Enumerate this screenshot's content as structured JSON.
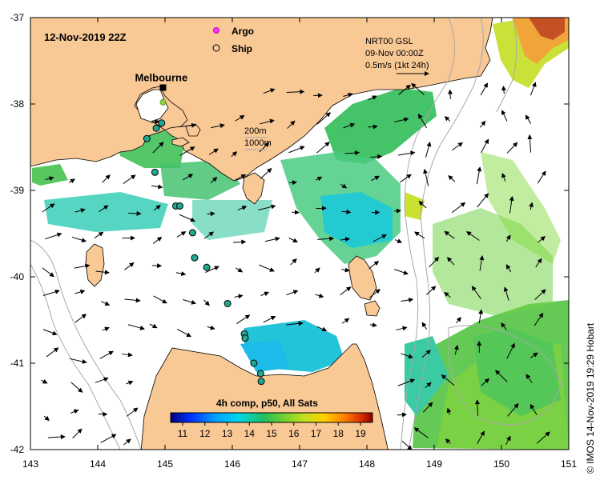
{
  "title": {
    "datetime": "12-Nov-2019 22Z",
    "legend_argo": "Argo",
    "legend_ship": "Ship"
  },
  "city": {
    "name": "Melbourne",
    "lon": 144.97,
    "lat": -37.81
  },
  "current_info": {
    "line1": "NRT00 GSL",
    "line2": "09-Nov 00:00Z",
    "line3": "0.5m/s (1kt 24h)"
  },
  "contours": {
    "label_200": "200m",
    "label_1000": "1000m"
  },
  "colorbar": {
    "title": "4h comp, p50, All Sats",
    "ticks": [
      "11",
      "12",
      "13",
      "14",
      "15",
      "16",
      "17",
      "18",
      "19"
    ]
  },
  "credit": "© IMOS 14-Nov-2019 19:29 Hobart",
  "axes": {
    "x_ticks": [
      "143",
      "144",
      "145",
      "146",
      "147",
      "148",
      "149",
      "150",
      "151"
    ],
    "y_ticks": [
      "-37",
      "-38",
      "-39",
      "-40",
      "-41",
      "-42"
    ],
    "x_range": [
      143,
      151
    ],
    "y_range": [
      -42,
      -37
    ]
  },
  "ships": [
    {
      "lon": 144.73,
      "lat": -38.4
    },
    {
      "lon": 144.87,
      "lat": -38.28
    },
    {
      "lon": 144.95,
      "lat": -38.22
    },
    {
      "lon": 144.85,
      "lat": -38.79
    },
    {
      "lon": 145.16,
      "lat": -39.18
    },
    {
      "lon": 145.22,
      "lat": -39.18
    },
    {
      "lon": 145.41,
      "lat": -39.49
    },
    {
      "lon": 145.44,
      "lat": -39.78
    },
    {
      "lon": 145.62,
      "lat": -39.89
    },
    {
      "lon": 145.93,
      "lat": -40.31
    },
    {
      "lon": 146.18,
      "lat": -40.66
    },
    {
      "lon": 146.19,
      "lat": -40.71
    },
    {
      "lon": 146.32,
      "lat": -41.0
    },
    {
      "lon": 146.42,
      "lat": -41.12
    },
    {
      "lon": 146.43,
      "lat": -41.21
    }
  ],
  "argo": [
    {
      "lon": 144.97,
      "lat": -37.98
    }
  ],
  "colors": {
    "land": "#f8c895",
    "ocean": "#ffffff",
    "contour": "#a8a8a8",
    "scale": [
      "#000080",
      "#0040ff",
      "#00a0ff",
      "#00d8e8",
      "#20c060",
      "#70d030",
      "#c0e020",
      "#ffd000",
      "#ff8000",
      "#e03000",
      "#8b0000"
    ]
  }
}
